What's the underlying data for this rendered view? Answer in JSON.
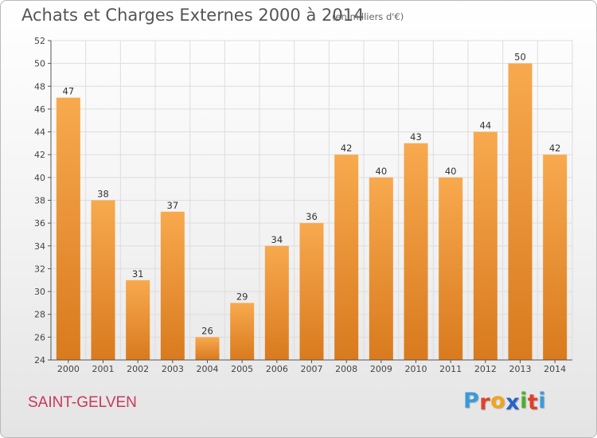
{
  "header": {
    "title": "Achats et Charges Externes 2000 à 2014",
    "unit": "(en milliers d'€)"
  },
  "footer": {
    "commune": "SAINT-GELVEN",
    "logo": {
      "letters": [
        "P",
        "r",
        "o",
        "x",
        "i",
        "t",
        "i"
      ],
      "colors": [
        "#3a9ad9",
        "#e0402a",
        "#f2a51c",
        "#2a62c8",
        "#4caf2a",
        "#e0402a",
        "#3a9ad9"
      ]
    }
  },
  "colors": {
    "bar_light": "#f8a94e",
    "bar_dark": "#d97a1e",
    "grid": "#dddddd",
    "axis": "#555555"
  },
  "chart_data": {
    "type": "bar",
    "categories": [
      "2000",
      "2001",
      "2002",
      "2003",
      "2004",
      "2005",
      "2006",
      "2007",
      "2008",
      "2009",
      "2010",
      "2011",
      "2012",
      "2013",
      "2014"
    ],
    "values": [
      47,
      38,
      31,
      37,
      26,
      29,
      34,
      36,
      42,
      40,
      43,
      40,
      44,
      50,
      42
    ],
    "data_labels": [
      "47",
      "38",
      "31",
      "37",
      "26",
      "29",
      "34",
      "36",
      "42",
      "40",
      "43",
      "40",
      "44",
      "50",
      "42"
    ],
    "title": "Achats et Charges Externes 2000 à 2014",
    "xlabel": "",
    "ylabel": "",
    "ylim": [
      24,
      52
    ],
    "yticks": [
      24,
      26,
      28,
      30,
      32,
      34,
      36,
      38,
      40,
      42,
      44,
      46,
      48,
      50,
      52
    ],
    "grid": true,
    "legend": "none"
  }
}
